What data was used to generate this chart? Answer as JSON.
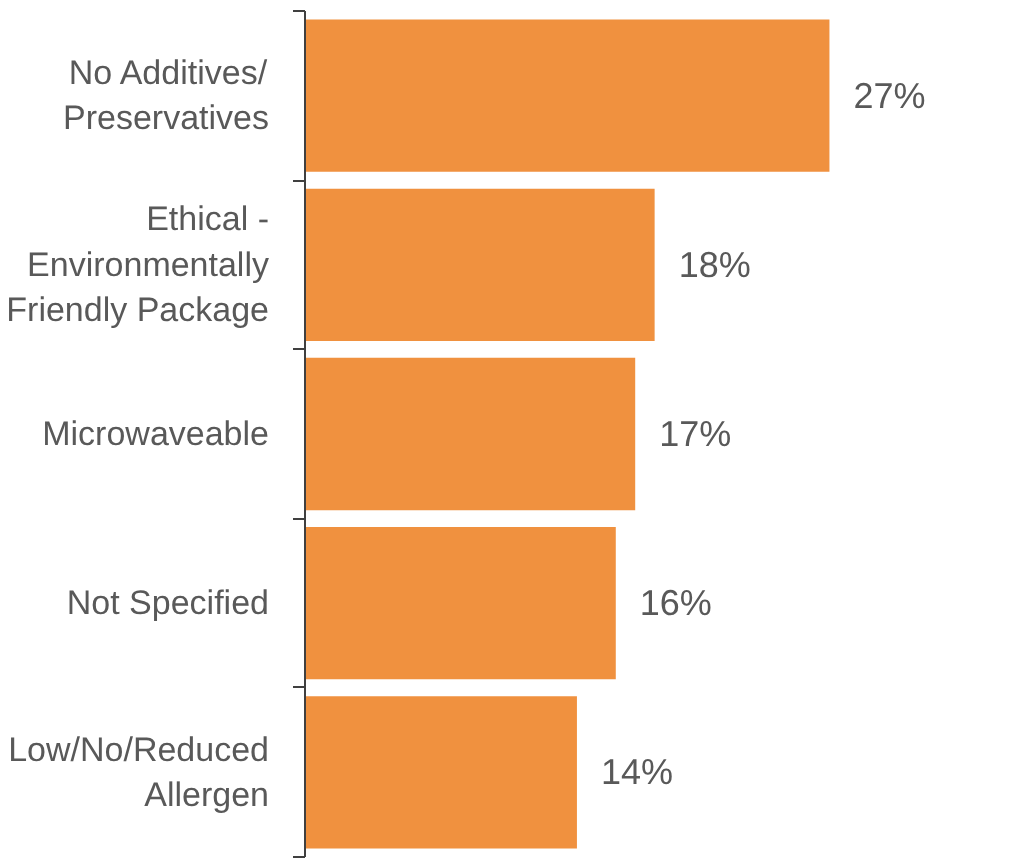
{
  "chart_data": {
    "type": "bar",
    "orientation": "horizontal",
    "categories": [
      "No Additives/\nPreservatives",
      "Ethical -\nEnvironmentally\nFriendly Package",
      "Microwaveable",
      "Not Specified",
      "Low/No/Reduced\nAllergen"
    ],
    "values": [
      27,
      18,
      17,
      16,
      14
    ],
    "value_labels": [
      "27%",
      "18%",
      "17%",
      "16%",
      "14%"
    ],
    "color": "#f0913f",
    "grid": false
  }
}
